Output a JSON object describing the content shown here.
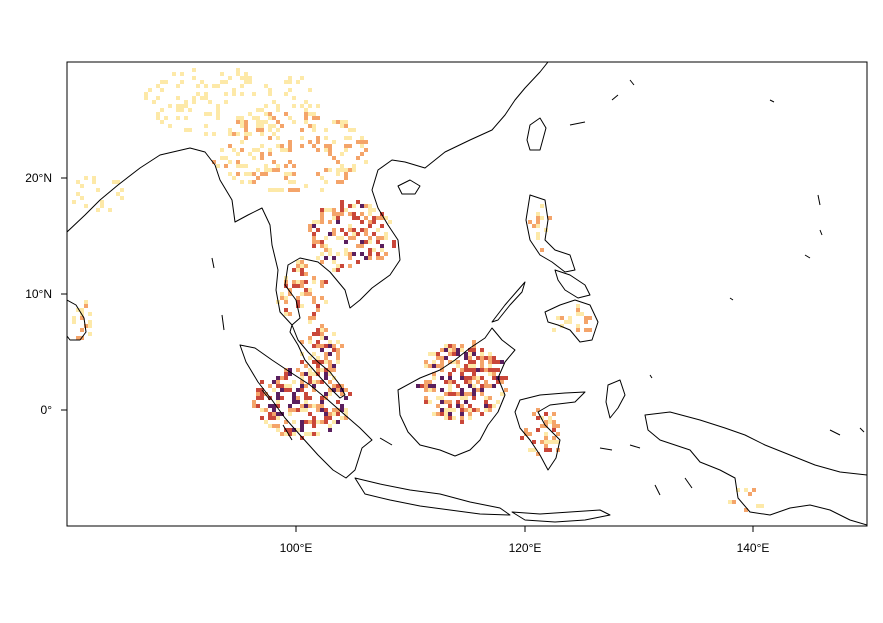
{
  "map": {
    "lon_range": [
      80,
      150
    ],
    "lat_range": [
      -10,
      30
    ],
    "colors": {
      "low": "#fde9a8",
      "mid": "#f4a46a",
      "high": "#c9473a",
      "max": "#5a1f5e",
      "coast": "#000000"
    },
    "x_ticks": [
      {
        "value": 100,
        "label": "100°E"
      },
      {
        "value": 120,
        "label": "120°E"
      },
      {
        "value": 140,
        "label": "140°E"
      }
    ],
    "y_ticks": [
      {
        "value": 20,
        "label": "20°N"
      },
      {
        "value": 10,
        "label": "10°N"
      },
      {
        "value": 0,
        "label": "0°"
      }
    ]
  }
}
